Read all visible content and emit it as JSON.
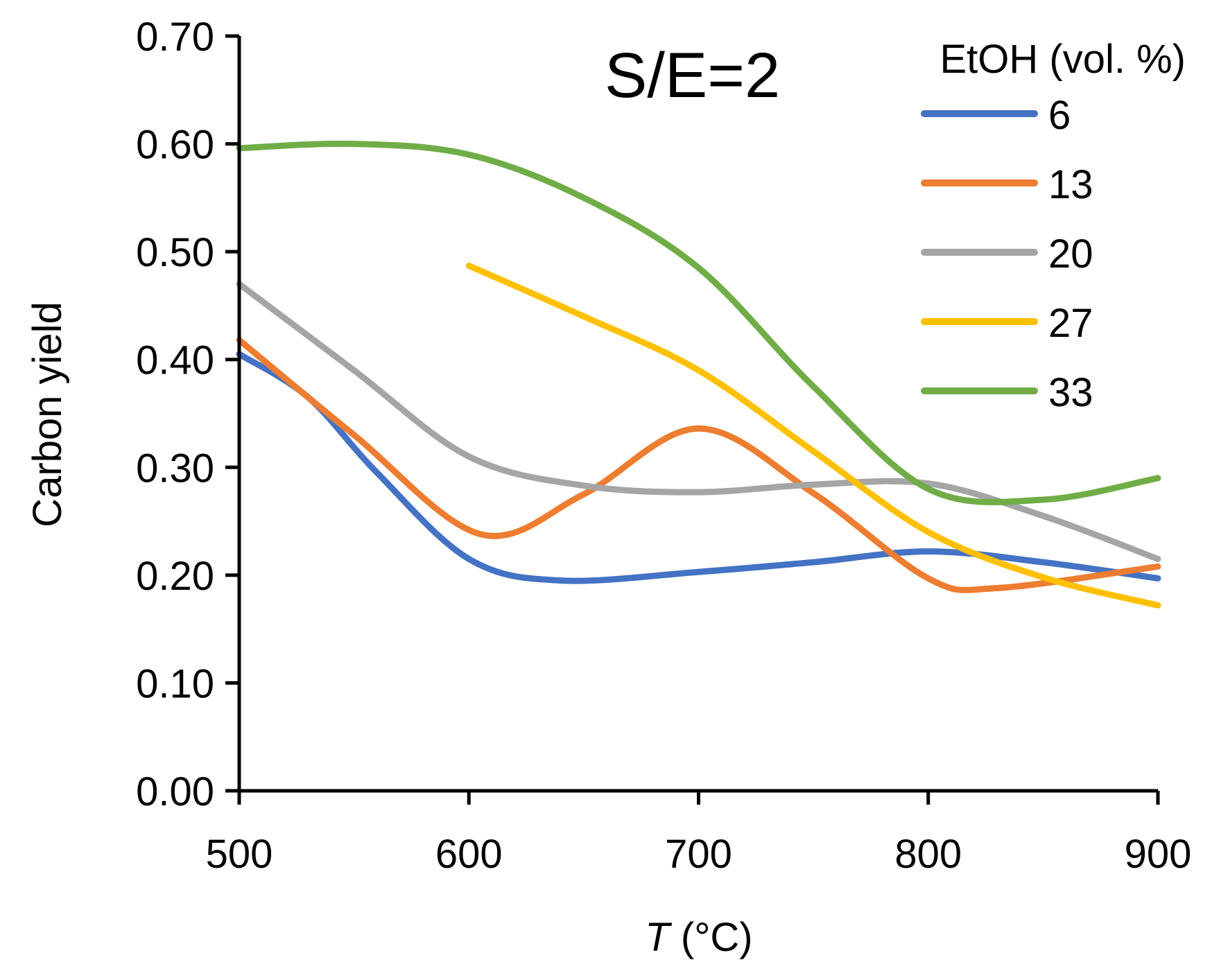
{
  "chart_data": {
    "type": "line",
    "title": "",
    "annotation": "S/E=2",
    "xlabel_italic": "T",
    "xlabel_unit": " (°C)",
    "ylabel": "Carbon yield",
    "xlim": [
      500,
      900
    ],
    "ylim": [
      0,
      0.7
    ],
    "x_ticks": [
      500,
      600,
      700,
      800,
      900
    ],
    "x_tick_labels": [
      "500",
      "600",
      "700",
      "800",
      "900"
    ],
    "y_ticks": [
      0,
      0.1,
      0.2,
      0.3,
      0.4,
      0.5,
      0.6,
      0.7
    ],
    "y_tick_labels": [
      "0.00",
      "0.10",
      "0.20",
      "0.30",
      "0.40",
      "0.50",
      "0.60",
      "0.70"
    ],
    "grid": false,
    "legend_title": "EtOH (vol. %)",
    "legend_position": "top-right",
    "series": [
      {
        "name": "6",
        "color": "#4472C4",
        "x": [
          500,
          530,
          560,
          600,
          640,
          700,
          750,
          800,
          850,
          900
        ],
        "y": [
          0.405,
          0.365,
          0.295,
          0.215,
          0.195,
          0.203,
          0.212,
          0.222,
          0.212,
          0.197
        ]
      },
      {
        "name": "13",
        "color": "#ED7D31",
        "x": [
          500,
          550,
          605,
          650,
          700,
          750,
          800,
          830,
          900
        ],
        "y": [
          0.418,
          0.33,
          0.238,
          0.275,
          0.336,
          0.276,
          0.197,
          0.188,
          0.208
        ]
      },
      {
        "name": "20",
        "color": "#A5A5A5",
        "x": [
          500,
          550,
          600,
          650,
          700,
          750,
          800,
          850,
          900
        ],
        "y": [
          0.47,
          0.39,
          0.31,
          0.283,
          0.277,
          0.284,
          0.285,
          0.255,
          0.215
        ]
      },
      {
        "name": "27",
        "color": "#FFC000",
        "x": [
          600,
          650,
          700,
          750,
          800,
          850,
          900
        ],
        "y": [
          0.487,
          0.44,
          0.39,
          0.315,
          0.24,
          0.198,
          0.172
        ]
      },
      {
        "name": "33",
        "color": "#70AD47",
        "x": [
          500,
          550,
          600,
          650,
          700,
          750,
          800,
          850,
          900
        ],
        "y": [
          0.596,
          0.6,
          0.59,
          0.55,
          0.485,
          0.375,
          0.28,
          0.27,
          0.29
        ]
      }
    ]
  }
}
